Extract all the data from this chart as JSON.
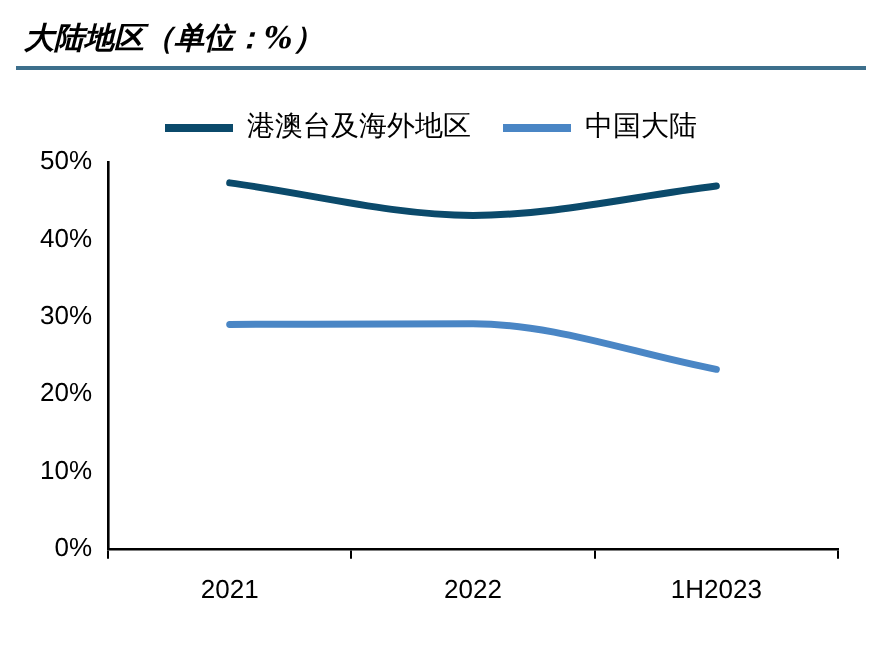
{
  "chart_data": {
    "type": "line",
    "title": "大陆地区（单位：%）",
    "categories": [
      "2021",
      "2022",
      "1H2023"
    ],
    "series": [
      {
        "name": "港澳台及海外地区",
        "color": "#0b4a6b",
        "values": [
          47.3,
          43.1,
          46.9
        ]
      },
      {
        "name": "中国大陆",
        "color": "#4a86c5",
        "values": [
          29.0,
          29.1,
          23.2
        ]
      }
    ],
    "ylim": [
      0,
      50
    ],
    "yticks": [
      {
        "value": 0,
        "label": "0%"
      },
      {
        "value": 10,
        "label": "10%"
      },
      {
        "value": 20,
        "label": "20%"
      },
      {
        "value": 30,
        "label": "30%"
      },
      {
        "value": 40,
        "label": "40%"
      },
      {
        "value": 50,
        "label": "50%"
      }
    ],
    "legend": "top",
    "grid": false,
    "marker": "none",
    "line_style": "solid"
  }
}
